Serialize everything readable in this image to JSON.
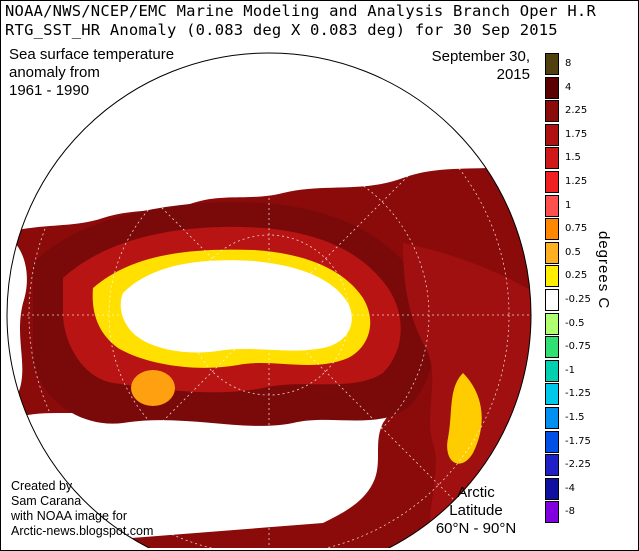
{
  "header": {
    "line1": "NOAA/NWS/NCEP/EMC Marine Modeling and Analysis Branch Oper H.R",
    "line2": "RTG_SST_HR Anomaly (0.083 deg X 0.083 deg) for 30 Sep 2015"
  },
  "annotations": {
    "description": [
      "Sea surface temperature",
      "anomaly from",
      "1961 - 1990"
    ],
    "date": [
      "September 30,",
      "2015"
    ],
    "credit": [
      "Created by",
      "Sam Carana",
      "with NOAA image for",
      "Arctic-news.blogspot.com"
    ],
    "region": [
      "Arctic",
      "Latitude",
      "60°N - 90°N"
    ]
  },
  "colorbar": {
    "units": "degrees C",
    "labels": [
      "8",
      "4",
      "2.25",
      "1.75",
      "1.5",
      "1.25",
      "1",
      "0.75",
      "0.5",
      "0.25",
      "-0.25",
      "-0.5",
      "-0.75",
      "-1",
      "-1.25",
      "-1.5",
      "-1.75",
      "-2.25",
      "-4",
      "-8"
    ],
    "colors": [
      "#504010",
      "#5a0000",
      "#8b0a0a",
      "#b01010",
      "#d01818",
      "#f02020",
      "#ff5050",
      "#ff8800",
      "#ffb020",
      "#ffee00",
      "#ffffff",
      "#b0ff70",
      "#30e070",
      "#00d0b0",
      "#00c8e8",
      "#0090f0",
      "#0050e8",
      "#2020c8",
      "#1010a0",
      "#8000e0"
    ]
  },
  "colors": {
    "land": "#ffffff",
    "ice": "#ffffff",
    "coast": "#000000",
    "warm_dark": "#7a0a0a",
    "warm_mid": "#b81414",
    "warm_yellow": "#ffe000"
  }
}
